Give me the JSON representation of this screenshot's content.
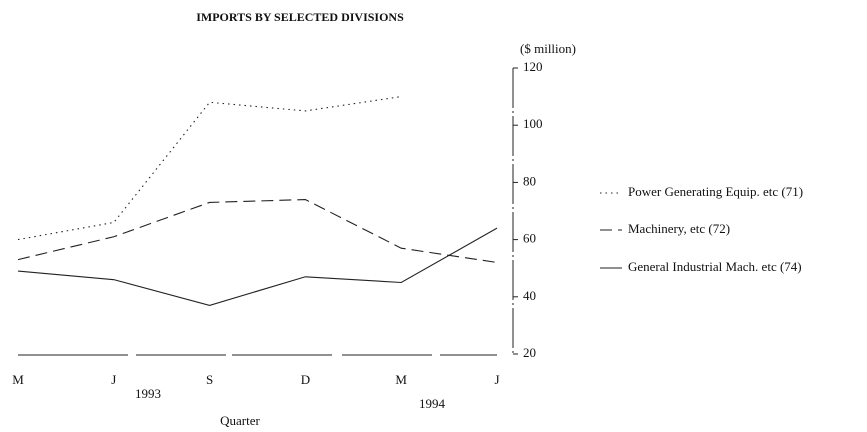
{
  "chart_data": {
    "type": "line",
    "title": "IMPORTS BY SELECTED DIVISIONS",
    "y_axis_label": "($ million)",
    "x_axis_label": "Quarter",
    "categories": [
      "M",
      "J",
      "S",
      "D",
      "M",
      "J"
    ],
    "year_labels": [
      "1993",
      "1994"
    ],
    "ylim": [
      20,
      120
    ],
    "yticks": [
      20,
      40,
      60,
      80,
      100,
      120
    ],
    "y_axis_side": "right",
    "grid": false,
    "legend_position": "right",
    "series": [
      {
        "name": "Power Generating Equip. etc (71)",
        "color": "#222222",
        "style": "dotted",
        "values": [
          60,
          66,
          108,
          105,
          110,
          null
        ]
      },
      {
        "name": "Machinery, etc (72)",
        "color": "#222222",
        "style": "dashed",
        "values": [
          53,
          61,
          73,
          74,
          57,
          52
        ]
      },
      {
        "name": "General Industrial Mach. etc (74)",
        "color": "#222222",
        "style": "solid",
        "values": [
          49,
          46,
          37,
          47,
          45,
          64
        ]
      }
    ]
  }
}
